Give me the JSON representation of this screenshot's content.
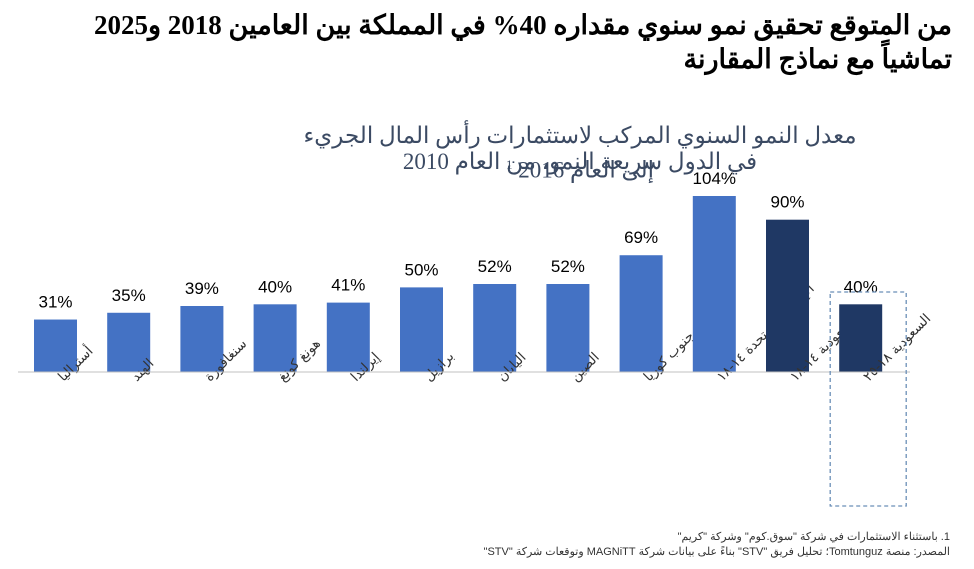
{
  "headline": "من المتوقع تحقيق نمو سنوي مقداره 40% في المملكة بين العامين 2018 و2025 تماشياً مع نماذج المقارنة",
  "chart_data": {
    "type": "bar",
    "title_line1": "معدل النمو السنوي المركب لاستثمارات رأس المال الجريء في الدول سريعة النمو، من العام 2010",
    "title_line2": "إلى العام 2016",
    "title_footnote_marker": "1",
    "categories": [
      "أستراليا",
      "الهند",
      "سنغافورة",
      "هونغ كونغ",
      "إيرلندا",
      "برازيل",
      "اليابان",
      "الصين",
      "جنوب كوريا",
      "الإمارات المتحدة ١٤-١٨",
      "السعودية ١٤-١٨",
      "السعودية ١٨-٢٥"
    ],
    "values": [
      31,
      35,
      39,
      40,
      41,
      50,
      52,
      52,
      69,
      104,
      90,
      40
    ],
    "value_labels": [
      "31%",
      "35%",
      "39%",
      "40%",
      "41%",
      "50%",
      "52%",
      "52%",
      "69%",
      "104%",
      "90%",
      "40%"
    ],
    "highlight_indices": [
      10,
      11
    ],
    "dashed_box_index": 11,
    "ylim": [
      0,
      110
    ],
    "grid": false,
    "colors": {
      "primary": "#4472c4",
      "highlight": "#1f3864",
      "axis": "#c0c0c0",
      "box": "#6b8fb8"
    }
  },
  "footnotes": {
    "note1": "1. باستثناء الاستثمارات في شركة \"سوق.كوم\" وشركة \"كريم\"",
    "source": "المصدر: منصة Tomtunguz؛ تحليل فريق \"STV\" بناءً على بيانات شركة MAGNiTT وتوقعات شركة \"STV\""
  }
}
